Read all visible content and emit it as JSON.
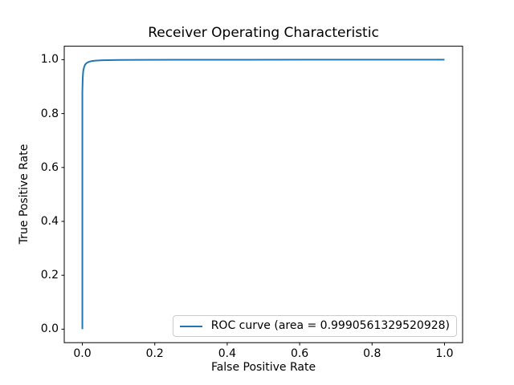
{
  "chart_data": {
    "type": "line",
    "title": "Receiver Operating Characteristic",
    "xlabel": "False Positive Rate",
    "ylabel": "True Positive Rate",
    "xlim": [
      -0.05,
      1.05
    ],
    "ylim": [
      -0.05,
      1.05
    ],
    "xticks": [
      0.0,
      0.2,
      0.4,
      0.6,
      0.8,
      1.0
    ],
    "xtick_labels": [
      "0.0",
      "0.2",
      "0.4",
      "0.6",
      "0.8",
      "1.0"
    ],
    "yticks": [
      0.0,
      0.2,
      0.4,
      0.6,
      0.8,
      1.0
    ],
    "ytick_labels": [
      "0.0",
      "0.2",
      "0.4",
      "0.6",
      "0.8",
      "1.0"
    ],
    "grid": false,
    "background": "#ffffff",
    "axis_color": "#000000",
    "legend": {
      "position": "lower right",
      "border_color": "#cccccc",
      "entries": [
        {
          "label": "ROC curve (area = 0.9990561329520928)",
          "color": "#1f77b4"
        }
      ]
    },
    "series": [
      {
        "name": "ROC curve",
        "color": "#1f77b4",
        "linewidth": 2,
        "x": [
          0.0,
          0.0,
          0.001,
          0.002,
          0.003,
          0.005,
          0.007,
          0.01,
          0.014,
          0.019,
          0.026,
          0.035,
          0.05,
          0.07,
          0.1,
          0.15,
          0.25,
          0.45,
          0.7,
          1.0
        ],
        "y": [
          0.0,
          0.88,
          0.93,
          0.952,
          0.963,
          0.973,
          0.98,
          0.9855,
          0.9895,
          0.9925,
          0.9948,
          0.9963,
          0.9976,
          0.9984,
          0.999,
          0.9994,
          0.9997,
          0.99985,
          0.9999,
          1.0
        ]
      }
    ]
  }
}
